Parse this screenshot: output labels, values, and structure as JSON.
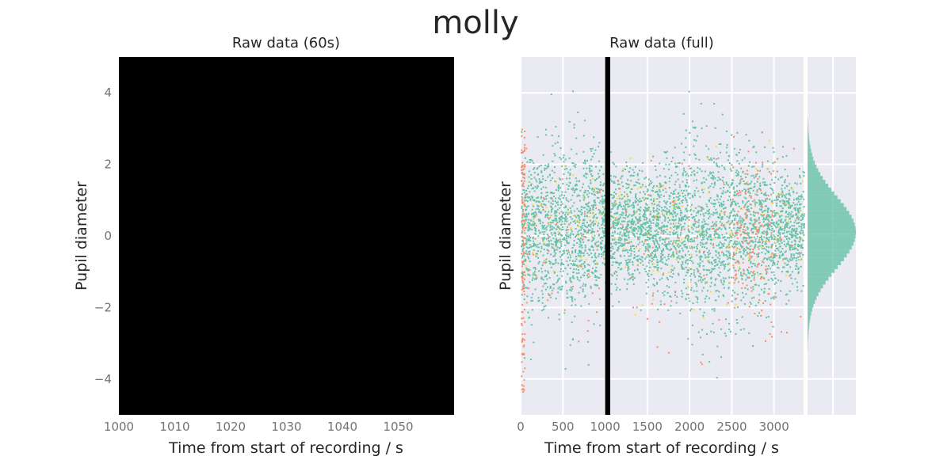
{
  "figure": {
    "title": "molly"
  },
  "colors": {
    "background": "#ffffff",
    "panel_bg": "#eaeaf2",
    "grid": "#ffffff",
    "black": "#000000",
    "teal": "#66c2a5",
    "orange": "#fc8d62",
    "yellow": "#ffd92f",
    "text": "#262626",
    "tick_text": "#737373"
  },
  "chart_data": [
    {
      "type": "scatter",
      "title": "Raw data (60s)",
      "xlabel": "Time from start of recording / s",
      "ylabel": "Pupil diameter",
      "xlim": [
        1000,
        1060
      ],
      "ylim": [
        -5,
        5
      ],
      "xticks": [
        1000,
        1010,
        1020,
        1030,
        1040,
        1050
      ],
      "xtick_labels": [
        "1000",
        "1010",
        "1020",
        "1030",
        "1040",
        "1050"
      ],
      "yticks": [
        4,
        2,
        0,
        -2,
        -4
      ],
      "ytick_labels": [
        "4",
        "2",
        "0",
        "−2",
        "−4"
      ],
      "background": "black",
      "grid": false,
      "note_visible": "panel is filled entirely black"
    },
    {
      "type": "scatter",
      "title": "Raw data (full)",
      "xlabel": "Time from start of recording / s",
      "ylabel": "Pupil diameter",
      "xlim": [
        0,
        3350
      ],
      "ylim": [
        -5,
        5
      ],
      "xticks": [
        0,
        500,
        1000,
        1500,
        2000,
        2500,
        3000
      ],
      "xtick_labels": [
        "0",
        "500",
        "1000",
        "1500",
        "2000",
        "2500",
        "3000"
      ],
      "yticks": [
        4,
        2,
        0,
        -2,
        -4
      ],
      "grid": true,
      "vertical_band": {
        "x_start": 1000,
        "x_end": 1060,
        "color": "black"
      },
      "series": [
        {
          "color": "teal",
          "center": 0.2,
          "spread": 1.0,
          "range": [
            -4.5,
            4.3
          ]
        },
        {
          "color": "orange",
          "center": -0.2,
          "spread": 1.2,
          "range": [
            -4.5,
            3.0
          ]
        },
        {
          "color": "yellow",
          "center": 0.3,
          "spread": 1.0,
          "range": [
            -3.0,
            3.0
          ]
        }
      ],
      "marginal_histogram": {
        "orientation": "horizontal",
        "bins_low": -3.2,
        "bins_high": 3.3,
        "peak": 0.1,
        "color": "teal"
      }
    }
  ]
}
